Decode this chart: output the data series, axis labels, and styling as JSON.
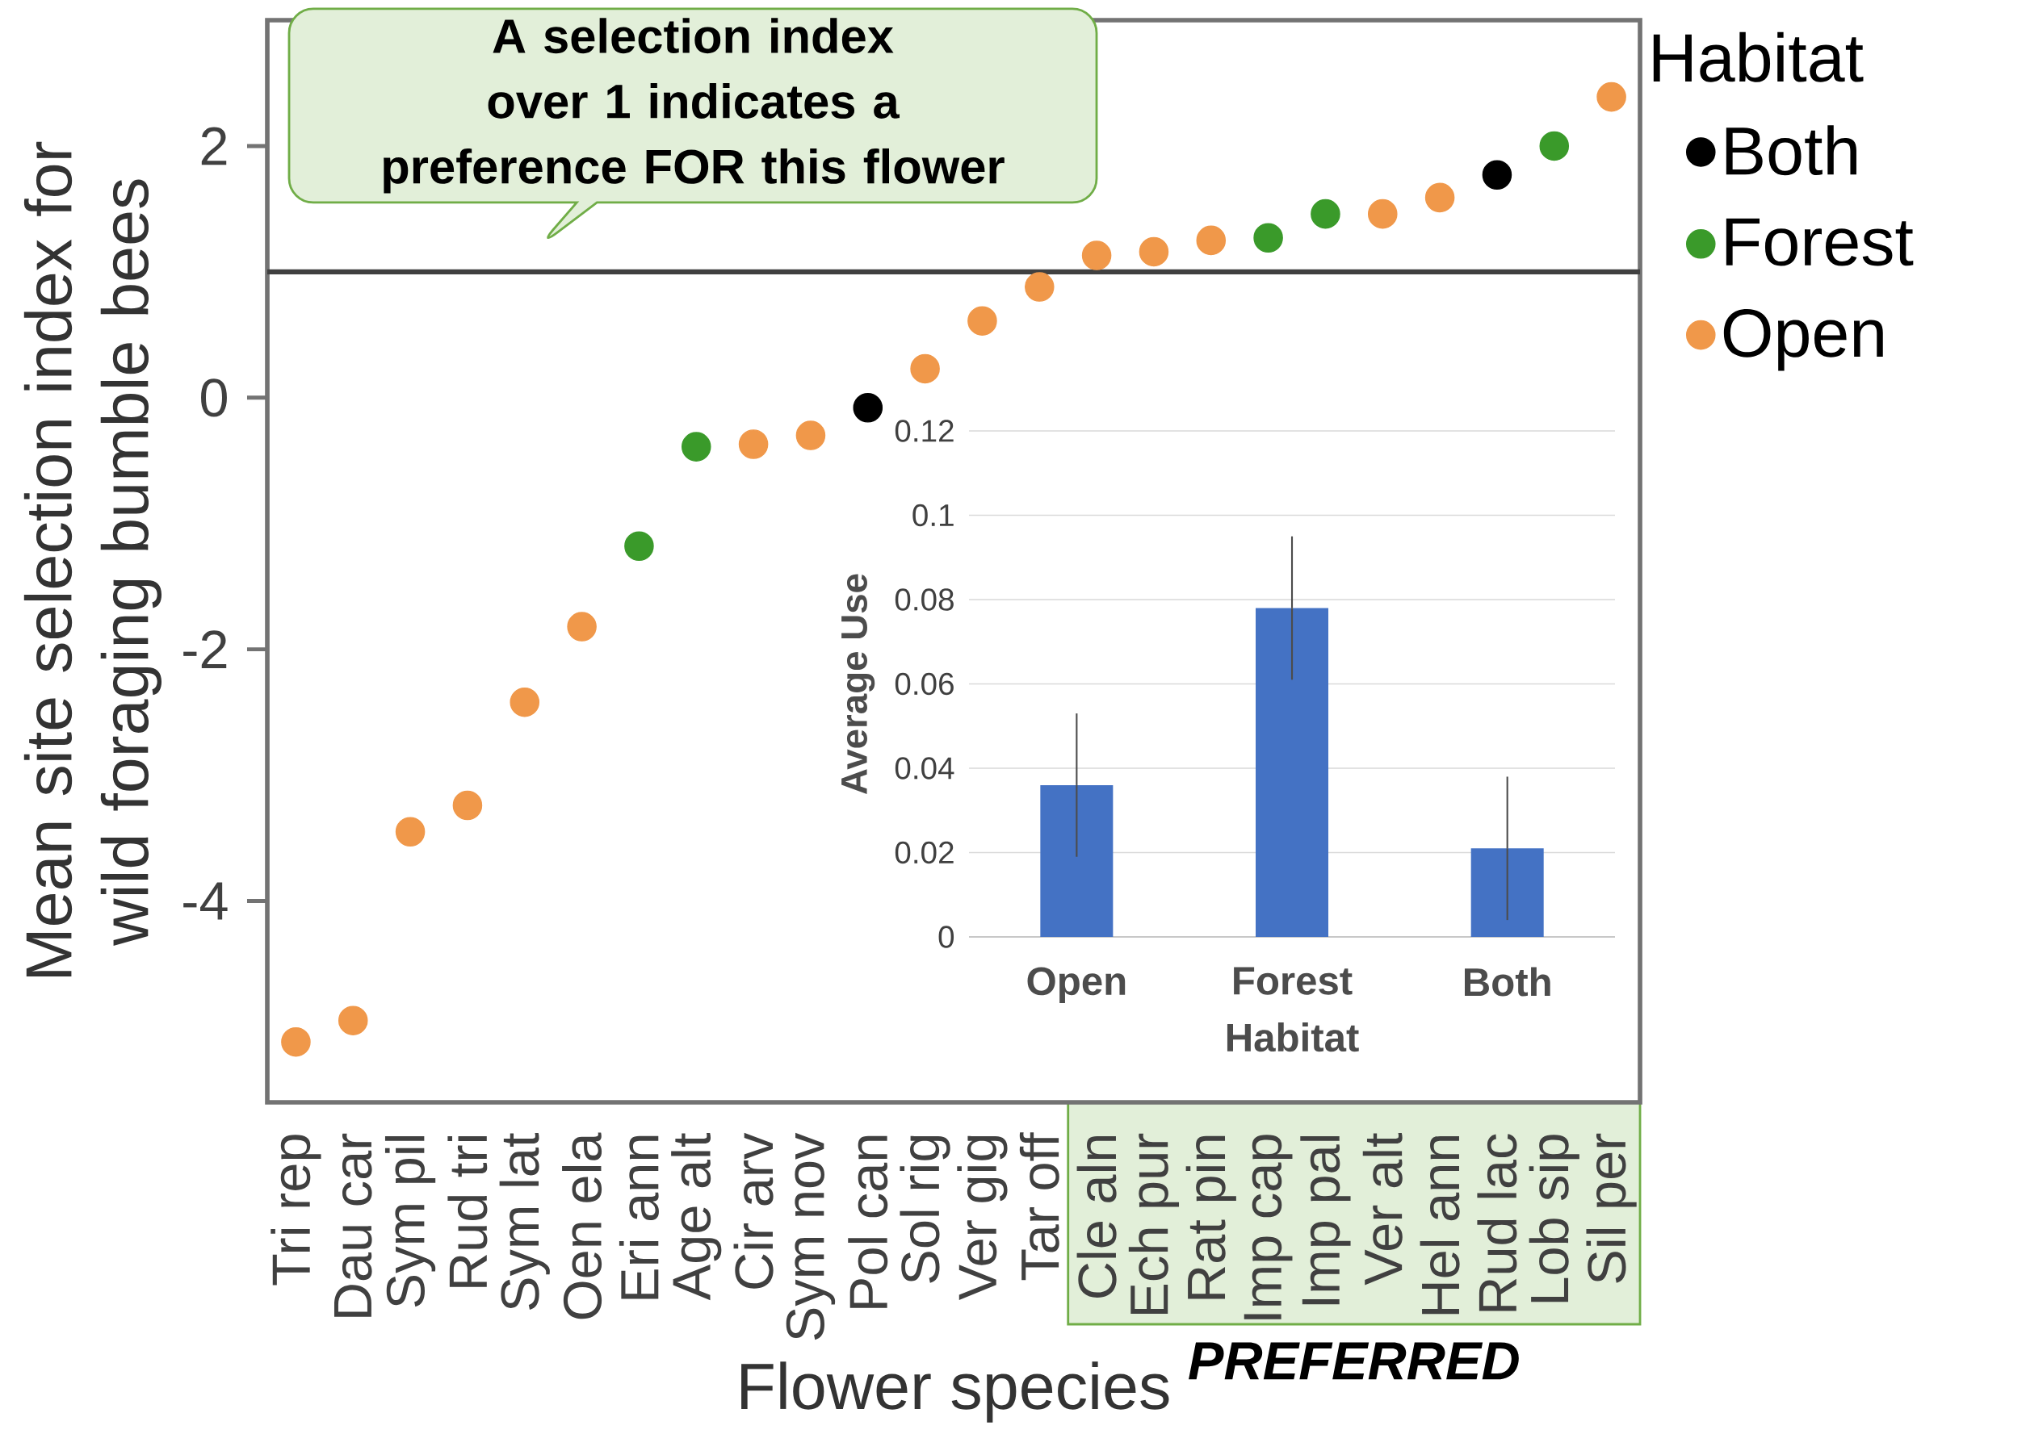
{
  "chart_data": [
    {
      "type": "scatter",
      "xlabel": "Flower species",
      "ylabel": "Mean site selection index for wild foraging bumble bees",
      "categories": [
        "Tri rep",
        "Dau car",
        "Sym pil",
        "Rud tri",
        "Sym lat",
        "Oen ela",
        "Eri ann",
        "Age alt",
        "Cir arv",
        "Sym nov",
        "Pol can",
        "Sol rig",
        "Ver gig",
        "Tar off",
        "Cle aln",
        "Ech pur",
        "Rat pin",
        "Imp cap",
        "Imp pal",
        "Ver alt",
        "Hel ann",
        "Rud lac",
        "Lob sip",
        "Sil per"
      ],
      "series": [
        {
          "name": "Both",
          "color": "#000000",
          "values": [
            null,
            null,
            null,
            null,
            null,
            null,
            null,
            null,
            null,
            null,
            -0.08,
            null,
            null,
            null,
            null,
            null,
            null,
            null,
            null,
            null,
            null,
            1.77,
            null,
            null
          ]
        },
        {
          "name": "Forest",
          "color": "#3a9a2a",
          "values": [
            null,
            null,
            null,
            null,
            null,
            null,
            -1.18,
            -0.39,
            null,
            null,
            null,
            null,
            null,
            null,
            null,
            null,
            null,
            1.27,
            1.46,
            null,
            null,
            null,
            2.0,
            null
          ]
        },
        {
          "name": "Open",
          "color": "#f0984a",
          "values": [
            -5.12,
            -4.95,
            -3.45,
            -3.24,
            -2.42,
            -1.82,
            null,
            null,
            -0.37,
            -0.3,
            null,
            0.23,
            0.61,
            0.88,
            1.13,
            1.16,
            1.25,
            null,
            null,
            1.46,
            1.59,
            null,
            null,
            2.39
          ]
        }
      ],
      "ylim": [
        -5.6,
        3.0
      ],
      "yticks": [
        -4,
        -2,
        0,
        2
      ],
      "legend": "right",
      "legend_title": "Habitat",
      "ref_lines": [
        {
          "axis": "y",
          "value": 1,
          "color": "#404040"
        }
      ],
      "annotations": [
        "A selection index over 1 indicates a preference FOR this flower",
        "PREFERRED"
      ]
    },
    {
      "type": "bar",
      "xlabel": "Habitat",
      "ylabel": "Average Use",
      "categories": [
        "Open",
        "Forest",
        "Both"
      ],
      "values": [
        0.036,
        0.078,
        0.021
      ],
      "errors": [
        0.017,
        0.017,
        0.017
      ],
      "color": "#4472c4",
      "ylim": [
        0,
        0.12
      ],
      "yticks": [
        0,
        0.02,
        0.04,
        0.06,
        0.08,
        0.1,
        0.12
      ],
      "grid": "y"
    }
  ]
}
